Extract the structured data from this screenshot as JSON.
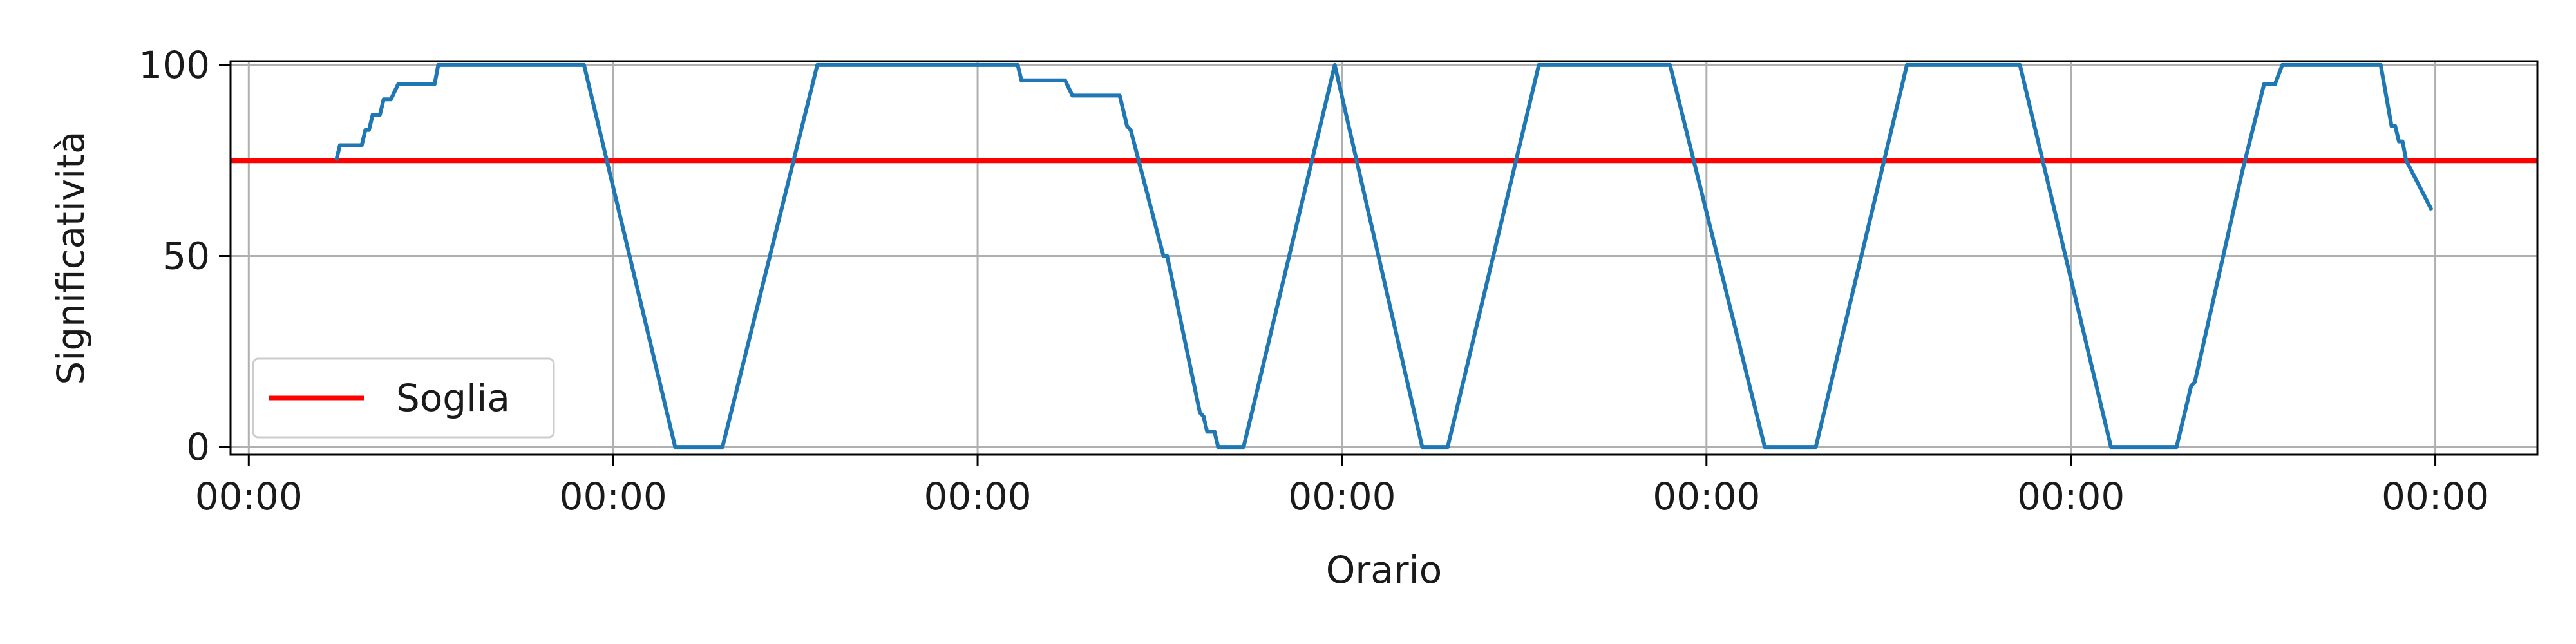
{
  "chart_data": {
    "type": "line",
    "title": "",
    "xlabel": "Orario",
    "ylabel": "Significatività",
    "xlim": [
      -0.05,
      6.28
    ],
    "ylim": [
      -2,
      101
    ],
    "grid": true,
    "legend_position": "lower-left",
    "x_ticks": [
      {
        "value": 0,
        "label": "00:00"
      },
      {
        "value": 1,
        "label": "00:00"
      },
      {
        "value": 2,
        "label": "00:00"
      },
      {
        "value": 3,
        "label": "00:00"
      },
      {
        "value": 4,
        "label": "00:00"
      },
      {
        "value": 5,
        "label": "00:00"
      },
      {
        "value": 6,
        "label": "00:00"
      }
    ],
    "y_ticks": [
      {
        "value": 0,
        "label": "0"
      },
      {
        "value": 50,
        "label": "50"
      },
      {
        "value": 100,
        "label": "100"
      }
    ],
    "threshold": {
      "name": "Soglia",
      "value": 75,
      "color": "#ff0000"
    },
    "series": [
      {
        "color": "#1f77b4",
        "points": [
          [
            0.24,
            75
          ],
          [
            0.25,
            79
          ],
          [
            0.31,
            79
          ],
          [
            0.32,
            83
          ],
          [
            0.33,
            83
          ],
          [
            0.34,
            87
          ],
          [
            0.36,
            87
          ],
          [
            0.37,
            91
          ],
          [
            0.39,
            91
          ],
          [
            0.41,
            95
          ],
          [
            0.51,
            95
          ],
          [
            0.52,
            100
          ],
          [
            0.92,
            100
          ],
          [
            1.17,
            0
          ],
          [
            1.3,
            0
          ],
          [
            1.56,
            100
          ],
          [
            2.11,
            100
          ],
          [
            2.12,
            96
          ],
          [
            2.24,
            96
          ],
          [
            2.26,
            92
          ],
          [
            2.39,
            92
          ],
          [
            2.41,
            84
          ],
          [
            2.42,
            83
          ],
          [
            2.51,
            50
          ],
          [
            2.52,
            50
          ],
          [
            2.61,
            9
          ],
          [
            2.62,
            8
          ],
          [
            2.63,
            4
          ],
          [
            2.65,
            4
          ],
          [
            2.66,
            0
          ],
          [
            2.73,
            0
          ],
          [
            2.98,
            100
          ],
          [
            3.22,
            0
          ],
          [
            3.29,
            0
          ],
          [
            3.54,
            100
          ],
          [
            3.9,
            100
          ],
          [
            4.16,
            0
          ],
          [
            4.3,
            0
          ],
          [
            4.55,
            100
          ],
          [
            4.86,
            100
          ],
          [
            5.11,
            0
          ],
          [
            5.29,
            0
          ],
          [
            5.33,
            16
          ],
          [
            5.34,
            17
          ],
          [
            5.47,
            72
          ],
          [
            5.53,
            95
          ],
          [
            5.56,
            95
          ],
          [
            5.58,
            100
          ],
          [
            5.85,
            100
          ],
          [
            5.88,
            84
          ],
          [
            5.89,
            84
          ],
          [
            5.9,
            80
          ],
          [
            5.91,
            80
          ],
          [
            5.92,
            75
          ],
          [
            5.99,
            62
          ]
        ]
      }
    ]
  }
}
